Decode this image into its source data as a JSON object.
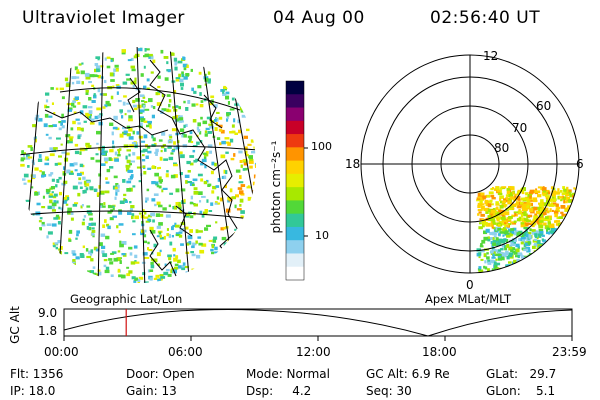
{
  "header": {
    "title": "Ultraviolet Imager",
    "date": "04 Aug 00",
    "time": "02:56:40 UT"
  },
  "geo_map": {
    "label": "Geographic Lat/Lon"
  },
  "colorbar": {
    "unit_label": "photon cm⁻²s⁻¹",
    "tick_labels": [
      "100",
      "10"
    ],
    "tick_values": [
      100,
      10
    ],
    "colors": [
      "#000040",
      "#3a0060",
      "#8a0070",
      "#c80028",
      "#ee3a10",
      "#ff9400",
      "#ffd200",
      "#e6ee00",
      "#a8e800",
      "#52d838",
      "#32c898",
      "#38b8e0",
      "#8ed0ee",
      "#e2f0f8",
      "#ffffff"
    ]
  },
  "polar_map": {
    "label": "Apex MLat/MLT",
    "mlt_labels": {
      "top": "12",
      "left": "18",
      "right": "6",
      "bottom": "0"
    },
    "lat_labels": [
      "60",
      "70",
      "80"
    ],
    "lat_values": [
      60,
      70,
      80
    ]
  },
  "altitude_plot": {
    "axis_title": "GC Alt",
    "ytick_labels": [
      "9.0",
      "1.8"
    ],
    "xtick_labels": [
      "00:00",
      "06:00",
      "12:00",
      "18:00",
      "23:59"
    ],
    "marker_hour": 2.94,
    "marker_color": "#d01010"
  },
  "status": {
    "flt": "Flt: 1356",
    "ip": "IP: 18.0",
    "door": "Door: Open",
    "gain": "Gain: 13",
    "mode": "Mode: Normal",
    "dsp": "Dsp:     4.2",
    "gc_alt": "GC Alt: 6.9 Re",
    "seq": "Seq: 30",
    "glat": "GLat:   29.7",
    "glon": "GLon:    5.1"
  }
}
